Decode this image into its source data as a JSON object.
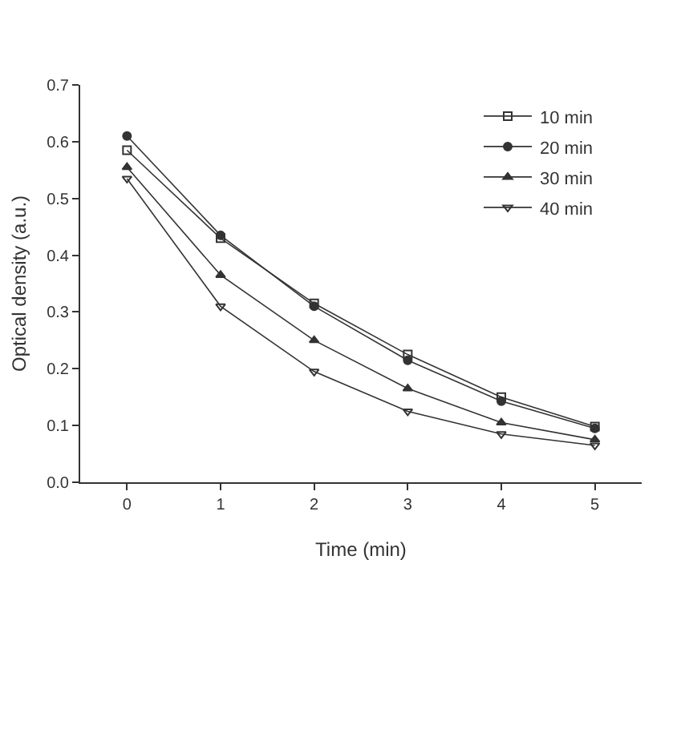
{
  "chart_data": {
    "type": "line",
    "xlabel": "Time (min)",
    "ylabel": "Optical density (a.u.)",
    "x": [
      0,
      1,
      2,
      3,
      4,
      5
    ],
    "series": [
      {
        "name": "10 min",
        "color": "#333333",
        "marker": "square",
        "values": [
          0.585,
          0.43,
          0.315,
          0.225,
          0.15,
          0.098
        ]
      },
      {
        "name": "20 min",
        "color": "#333333",
        "marker": "circle",
        "values": [
          0.61,
          0.435,
          0.31,
          0.215,
          0.143,
          0.095
        ]
      },
      {
        "name": "30 min",
        "color": "#333333",
        "marker": "triangle",
        "values": [
          0.555,
          0.365,
          0.25,
          0.165,
          0.105,
          0.075
        ]
      },
      {
        "name": "40 min",
        "color": "#333333",
        "marker": "triangle-down",
        "values": [
          0.535,
          0.31,
          0.195,
          0.125,
          0.085,
          0.065
        ]
      }
    ],
    "xlim": [
      -0.5,
      5.5
    ],
    "xticks": [
      0,
      1,
      2,
      3,
      4,
      5
    ],
    "ylim": [
      0,
      0.7
    ],
    "yticks": [
      {
        "value": 0,
        "label": "0.0"
      },
      {
        "value": 0.1,
        "label": "0.1"
      },
      {
        "value": 0.2,
        "label": "0.2"
      },
      {
        "value": 0.3,
        "label": "0.3"
      },
      {
        "value": 0.4,
        "label": "0.4"
      },
      {
        "value": 0.5,
        "label": "0.5"
      },
      {
        "value": 0.6,
        "label": "0.6"
      },
      {
        "value": 0.7,
        "label": "0.7"
      }
    ],
    "grid": false,
    "legend": "top right",
    "line_style": "solid"
  }
}
